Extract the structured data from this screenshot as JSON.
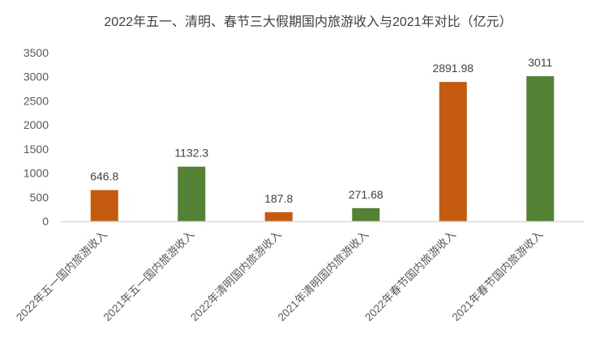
{
  "chart_data": {
    "type": "bar",
    "title": "2022年五一、清明、春节三大假期国内旅游收入与2021年对比（亿元）",
    "categories": [
      "2022年五一国内旅游收入",
      "2021年五一国内旅游收入",
      "2022年清明国内旅游收入",
      "2021年清明国内旅游收入",
      "2022年春节国内旅游收入",
      "2021年春节国内旅游收入"
    ],
    "values": [
      646.8,
      1132.3,
      187.8,
      271.68,
      2891.98,
      3011
    ],
    "data_labels": [
      "646.8",
      "1132.3",
      "187.8",
      "271.68",
      "2891.98",
      "3011"
    ],
    "bar_colors": [
      "#c55a11",
      "#548235",
      "#c55a11",
      "#548235",
      "#c55a11",
      "#548235"
    ],
    "ylim": [
      0,
      3500
    ],
    "yticks": [
      0,
      500,
      1000,
      1500,
      2000,
      2500,
      3000,
      3500
    ],
    "xlabel": "",
    "ylabel": "",
    "grid": false,
    "legend": "none"
  }
}
